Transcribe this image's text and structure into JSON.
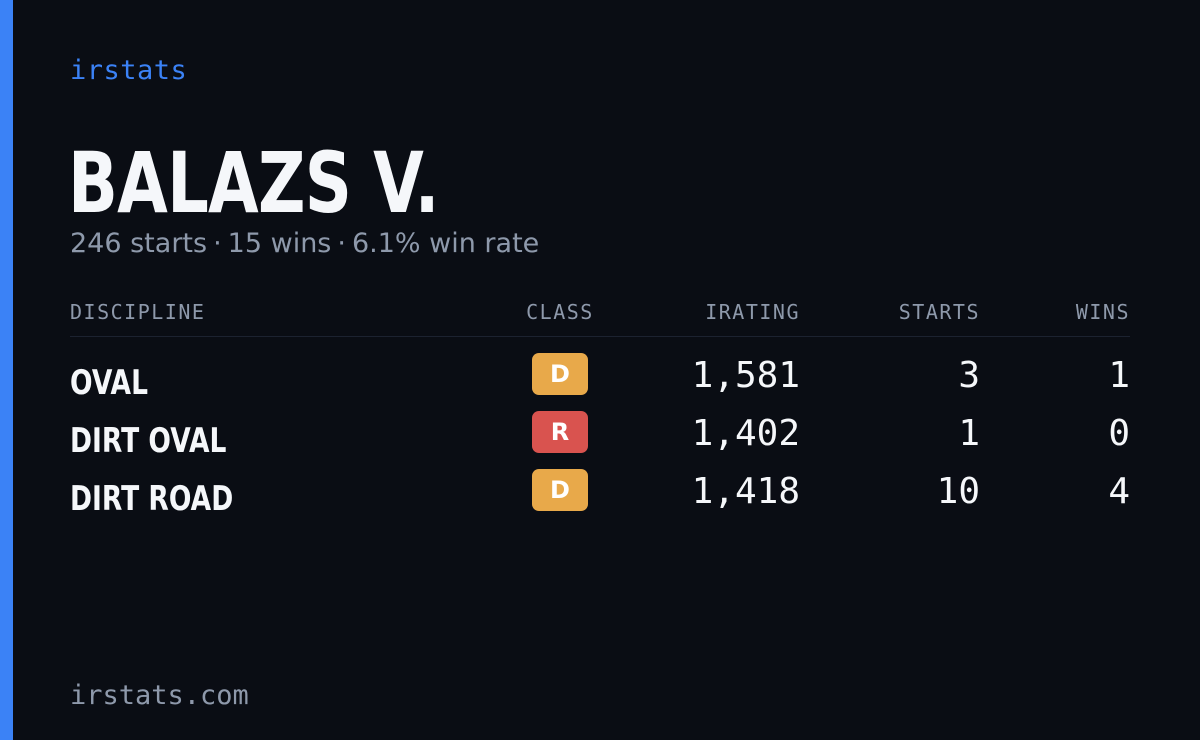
{
  "brand": "irstats",
  "driver": {
    "name": "BALAZS V.",
    "starts_text": "246 starts",
    "wins_text": "15 wins",
    "win_rate_text": "6.1% win rate",
    "separator": "·"
  },
  "table": {
    "headers": {
      "discipline": "DISCIPLINE",
      "class": "CLASS",
      "irating": "IRATING",
      "starts": "STARTS",
      "wins": "WINS"
    },
    "rows": [
      {
        "discipline": "OVAL",
        "class": "D",
        "class_color": "#e8a94a",
        "irating": "1,581",
        "starts": "3",
        "wins": "1"
      },
      {
        "discipline": "DIRT OVAL",
        "class": "R",
        "class_color": "#d9534f",
        "irating": "1,402",
        "starts": "1",
        "wins": "0"
      },
      {
        "discipline": "DIRT ROAD",
        "class": "D",
        "class_color": "#e8a94a",
        "irating": "1,418",
        "starts": "10",
        "wins": "4"
      }
    ]
  },
  "footer": "irstats.com",
  "colors": {
    "background": "#0a0d14",
    "accent": "#3b82f6",
    "muted_text": "#8e99ab",
    "primary_text": "#f5f7fa"
  }
}
